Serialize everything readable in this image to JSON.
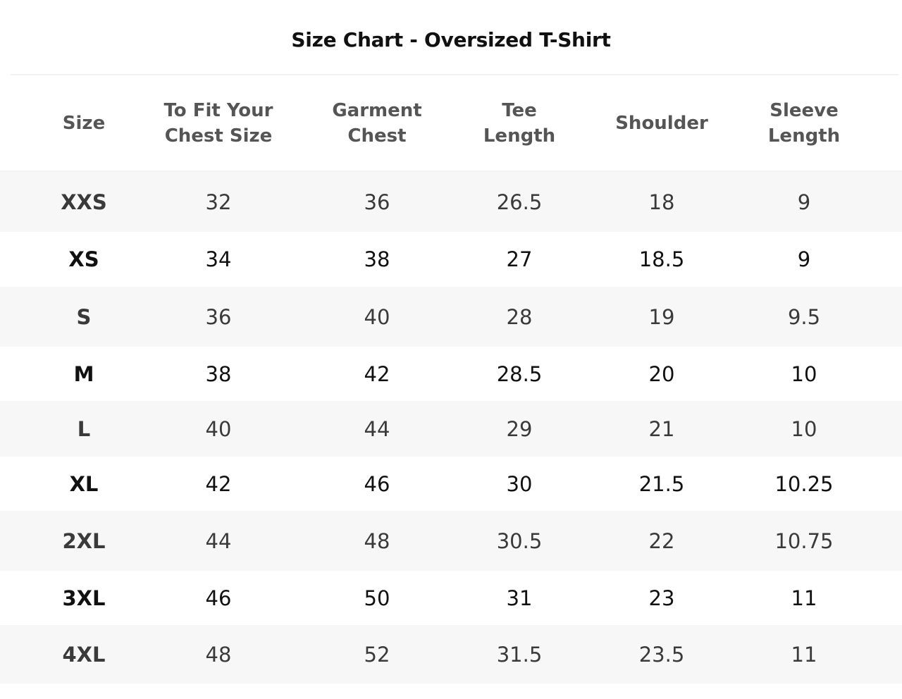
{
  "title": "Size Chart - Oversized T-Shirt",
  "columns": [
    "Size",
    "To Fit Your\nChest Size",
    "Garment\nChest",
    "Tee\nLength",
    "Shoulder",
    "Sleeve\nLength"
  ],
  "rows": [
    [
      "XXS",
      "32",
      "36",
      "26.5",
      "18",
      "9"
    ],
    [
      "XS",
      "34",
      "38",
      "27",
      "18.5",
      "9"
    ],
    [
      "S",
      "36",
      "40",
      "28",
      "19",
      "9.5"
    ],
    [
      "M",
      "38",
      "42",
      "28.5",
      "20",
      "10"
    ],
    [
      "L",
      "40",
      "44",
      "29",
      "21",
      "10"
    ],
    [
      "XL",
      "42",
      "46",
      "30",
      "21.5",
      "10.25"
    ],
    [
      "2XL",
      "44",
      "48",
      "30.5",
      "22",
      "10.75"
    ],
    [
      "3XL",
      "46",
      "50",
      "31",
      "23",
      "11"
    ],
    [
      "4XL",
      "48",
      "52",
      "31.5",
      "23.5",
      "11"
    ]
  ],
  "colors": {
    "stripe": "#f7f7f7",
    "header_text": "#555555"
  }
}
